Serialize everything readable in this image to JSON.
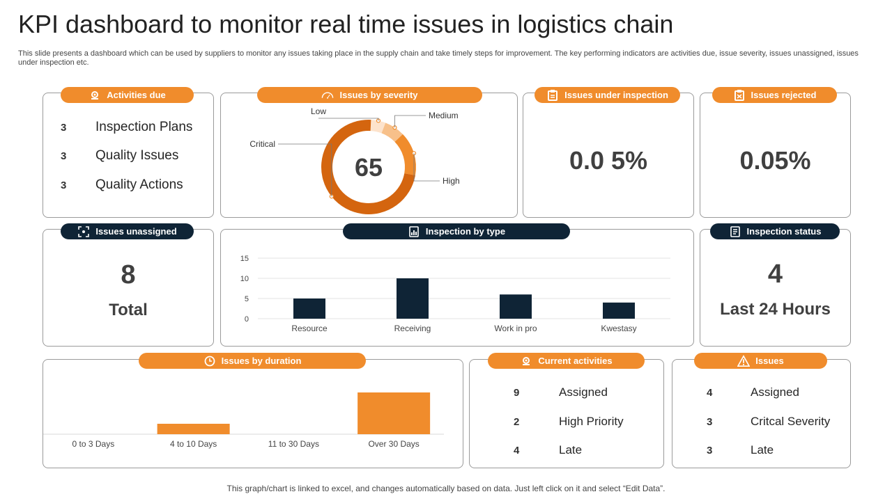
{
  "header": {
    "title": "KPI dashboard to monitor real time issues in logistics chain",
    "subtitle": "This slide presents a dashboard which can be used by suppliers to monitor any issues taking place in the supply chain and take timely steps for improvement. The key performing indicators are activities due, issue severity, issues unassigned, issues under inspection etc."
  },
  "activities_due": {
    "title": "Activities due",
    "items": [
      {
        "count": "3",
        "label": "Inspection Plans"
      },
      {
        "count": "3",
        "label": "Quality Issues"
      },
      {
        "count": "3",
        "label": "Quality Actions"
      }
    ]
  },
  "issues_by_severity": {
    "title": "Issues by severity",
    "center_value": "65",
    "labels": {
      "low": "Low",
      "medium": "Medium",
      "high": "High",
      "critical": "Critical"
    }
  },
  "issues_under_inspection": {
    "title": "Issues under inspection",
    "value": "0.0 5%"
  },
  "issues_rejected": {
    "title": "Issues rejected",
    "value": "0.05%"
  },
  "issues_unassigned": {
    "title": "Issues unassigned",
    "value": "8",
    "label": "Total"
  },
  "inspection_by_type": {
    "title": "Inspection by type"
  },
  "inspection_status": {
    "title": "Inspection status",
    "value": "4",
    "label": "Last 24 Hours"
  },
  "issues_by_duration": {
    "title": "Issues by duration"
  },
  "current_activities": {
    "title": "Current activities",
    "items": [
      {
        "count": "9",
        "label": "Assigned"
      },
      {
        "count": "2",
        "label": "High Priority"
      },
      {
        "count": "4",
        "label": "Late"
      }
    ]
  },
  "issues": {
    "title": "Issues",
    "items": [
      {
        "count": "4",
        "label": "Assigned"
      },
      {
        "count": "3",
        "label": "Critcal Severity"
      },
      {
        "count": "3",
        "label": "Late"
      }
    ]
  },
  "footer": {
    "note": "This graph/chart is linked to excel,  and changes automatically based on data. Just left click on it and select “Edit Data”."
  },
  "colors": {
    "orange": "#f08c2c",
    "navy": "#0f2436",
    "dark_orange": "#d4650f",
    "light_orange": "#f7c08a",
    "pale_orange": "#fde3cc"
  },
  "chart_data": [
    {
      "type": "pie",
      "title": "Issues by severity",
      "categories": [
        "Low",
        "Medium",
        "High",
        "Critical"
      ],
      "values": [
        5,
        7,
        15,
        73
      ]
    },
    {
      "type": "bar",
      "title": "Inspection by type",
      "categories": [
        "Resource",
        "Receiving",
        "Work  in pro",
        "Kwestasy"
      ],
      "values": [
        5,
        10,
        6,
        4
      ],
      "ylim": [
        0,
        15
      ],
      "yticks": [
        0,
        5,
        10,
        15
      ],
      "grid": true
    },
    {
      "type": "bar",
      "title": "Issues by duration",
      "categories": [
        "0 to 3 Days",
        "4 to 10 Days",
        "11 to 30 Days",
        "Over 30 Days"
      ],
      "values": [
        0,
        1,
        0,
        4
      ],
      "ylim": [
        0,
        4
      ]
    }
  ]
}
